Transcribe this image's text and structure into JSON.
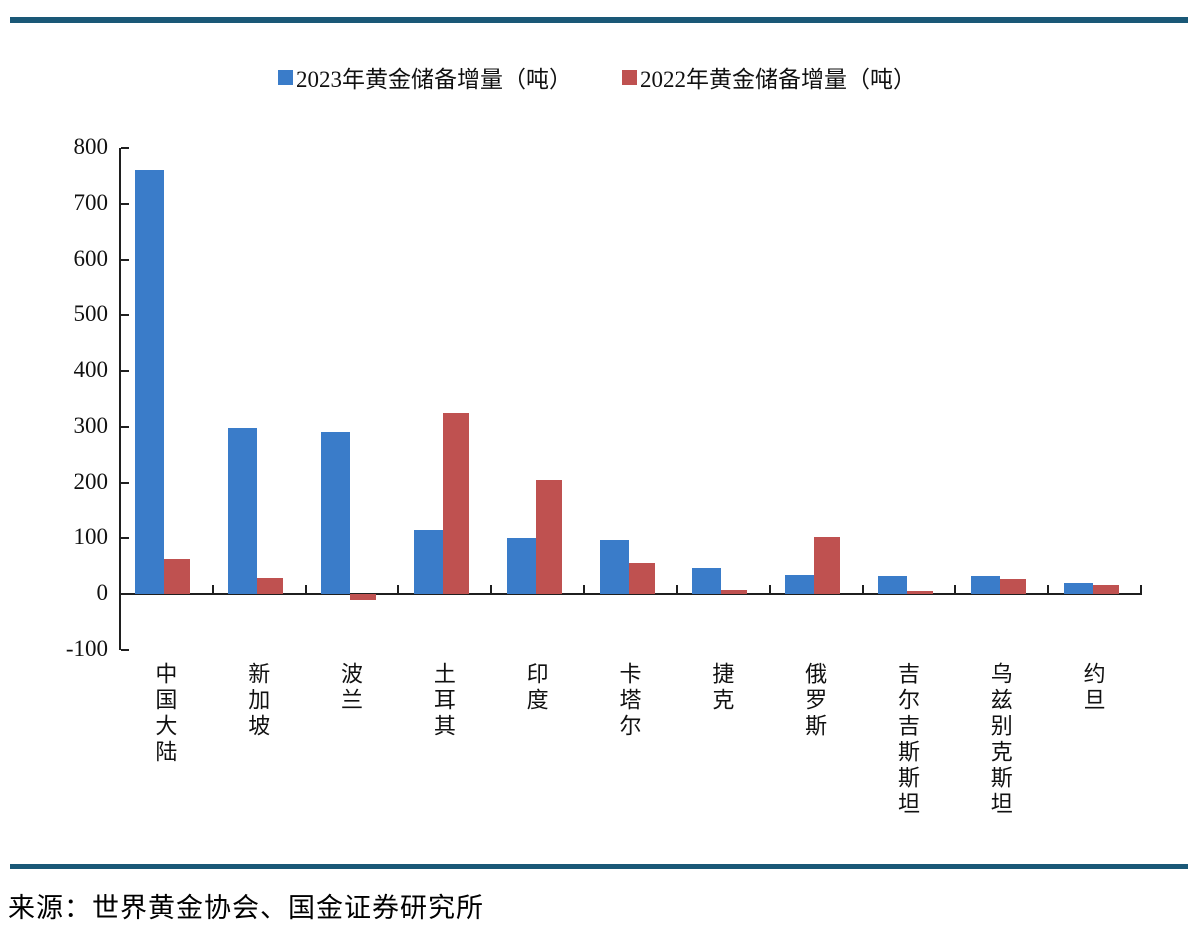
{
  "colors": {
    "series_2023": "#3A7CC9",
    "series_2022": "#BF5150",
    "rule": "#1A5877",
    "axis": "#1F1F1F"
  },
  "source": {
    "note": "来源：世界黄金协会、国金证券研究所"
  },
  "chart_data": {
    "type": "bar",
    "title": "",
    "xlabel": "",
    "ylabel": "",
    "grid": false,
    "legend_position": "top",
    "ylim": [
      -100,
      800
    ],
    "ytick_step": 100,
    "yticks": [
      -100,
      0,
      100,
      200,
      300,
      400,
      500,
      600,
      700,
      800
    ],
    "categories": [
      "中国大陆",
      "新加坡",
      "波兰",
      "土耳其",
      "印度",
      "卡塔尔",
      "捷克",
      "俄罗斯",
      "吉尔吉斯斯坦",
      "乌兹别克斯坦",
      "约旦"
    ],
    "series": [
      {
        "name": "2023年黄金储备增量（吨）",
        "color": "#3A7CC9",
        "values": [
          760,
          298,
          290,
          115,
          100,
          97,
          47,
          34,
          32,
          33,
          20
        ]
      },
      {
        "name": "2022年黄金储备增量（吨）",
        "color": "#BF5150",
        "values": [
          62,
          28,
          -10,
          325,
          205,
          56,
          7,
          102,
          5,
          27,
          16
        ]
      }
    ]
  }
}
